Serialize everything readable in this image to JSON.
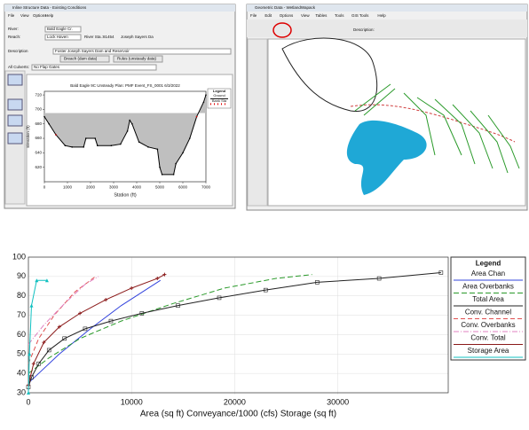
{
  "ui": {
    "left_window": {
      "title": "Inline Structure Data - Existing Conditions",
      "menu": [
        "File",
        "View",
        "Options",
        "Help"
      ],
      "river_label": "River:",
      "river": "Bald Eagle Cr.",
      "reach_label": "Reach:",
      "reach": "Lock Haven",
      "station_label": "River Sta.:",
      "station": "81454",
      "station_desc": "Joseph Sayers Da",
      "description_label": "Description",
      "description": "Foster Joseph Sayers Dam and Reservoir",
      "buttons": [
        "Breach (dam data)",
        "Rules (unsteady data)"
      ],
      "culverts_label": "All Culverts:",
      "culverts": "No Flap Gates"
    },
    "right_window": {
      "title": "Geometric Data - WetlandWapack",
      "menu": [
        "File",
        "Edit",
        "Options",
        "View",
        "Tables",
        "Tools",
        "GIS Tools",
        "Help"
      ],
      "description_label": "Description:"
    }
  },
  "chart_data": [
    {
      "type": "line",
      "title": "Bald Eagle   9C Unsteady    Plan: PMF Event_FS_0001    6/3/2022",
      "x_label": "Station (ft)",
      "y_label": "Elevation (ft)",
      "legend_title": "Legend",
      "xlim": [
        0,
        7000
      ],
      "xticks": [
        0,
        1000,
        2000,
        3000,
        4000,
        5000,
        6000,
        7000
      ],
      "ylim": [
        600,
        725
      ],
      "yticks": [
        620,
        640,
        660,
        680,
        700,
        720
      ],
      "weir_top": 695,
      "series": [
        {
          "name": "Ground",
          "color": "#000000",
          "marker": "dot",
          "x": [
            0,
            200,
            500,
            900,
            1200,
            1700,
            1800,
            2200,
            2300,
            2900,
            3300,
            3600,
            3700,
            3800,
            4100,
            4500,
            4900,
            5000,
            5100,
            5600,
            5700,
            6000,
            6300,
            6600,
            6900,
            7000
          ],
          "values": [
            690,
            680,
            665,
            650,
            648,
            648,
            660,
            660,
            650,
            650,
            652,
            670,
            685,
            680,
            655,
            648,
            645,
            620,
            610,
            610,
            625,
            640,
            660,
            690,
            710,
            720
          ]
        },
        {
          "name": "Bank Sta",
          "color": "#e00000",
          "marker": "dot",
          "line": false,
          "x": [
            500,
            6600
          ],
          "values": [
            665,
            690
          ]
        }
      ]
    },
    {
      "type": "line",
      "x_label": "Area (sq ft)  Conveyance/1000 (cfs)  Storage (sq ft)",
      "legend_title": "Legend",
      "xlim": [
        0,
        40700
      ],
      "xticks": [
        0,
        10000,
        20000,
        30000
      ],
      "ylim": [
        30,
        100
      ],
      "yticks": [
        30,
        40,
        50,
        60,
        70,
        80,
        90,
        100
      ],
      "grid": true,
      "series": [
        {
          "name": "Area Chan",
          "color": "#3344dd",
          "x": [
            0,
            3000,
            6000,
            9000,
            12800
          ],
          "values": [
            35,
            50,
            63,
            75,
            88
          ]
        },
        {
          "name": "Area Overbanks",
          "color": "#2a9a2a",
          "dash": "6,3",
          "x": [
            0,
            2000,
            5000,
            9000,
            14000,
            19000,
            24000,
            27500
          ],
          "values": [
            40,
            48,
            58,
            67,
            76,
            84,
            89,
            91
          ]
        },
        {
          "name": "Total Area",
          "color": "#222222",
          "marker": "square",
          "x": [
            0,
            300,
            1000,
            2000,
            3500,
            5500,
            8000,
            11000,
            14500,
            18500,
            23000,
            28000,
            34000,
            40000
          ],
          "values": [
            33,
            38,
            45,
            52,
            58,
            63,
            67,
            71,
            75,
            79,
            83,
            87,
            89,
            92
          ]
        },
        {
          "name": "Conv. Channel",
          "color": "#e05050",
          "dash": "5,3",
          "x": [
            0,
            1000,
            2500,
            4500,
            6500
          ],
          "values": [
            45,
            58,
            70,
            82,
            90
          ]
        },
        {
          "name": "Conv. Overbanks",
          "color": "#e080c0",
          "dash": "6,2,1,2",
          "x": [
            0,
            1500,
            3500,
            5500,
            6800
          ],
          "values": [
            55,
            65,
            76,
            86,
            90
          ]
        },
        {
          "name": "Conv. Total",
          "color": "#8b1a1a",
          "marker": "plus",
          "x": [
            0,
            500,
            1500,
            3000,
            5000,
            7500,
            10000,
            12500,
            13200
          ],
          "values": [
            34,
            45,
            56,
            64,
            71,
            78,
            84,
            89,
            91
          ]
        },
        {
          "name": "Storage Area",
          "color": "#10c0c0",
          "marker": "triangle",
          "x": [
            0,
            100,
            300,
            800,
            1800
          ],
          "values": [
            30,
            50,
            75,
            88,
            88
          ]
        }
      ]
    }
  ]
}
